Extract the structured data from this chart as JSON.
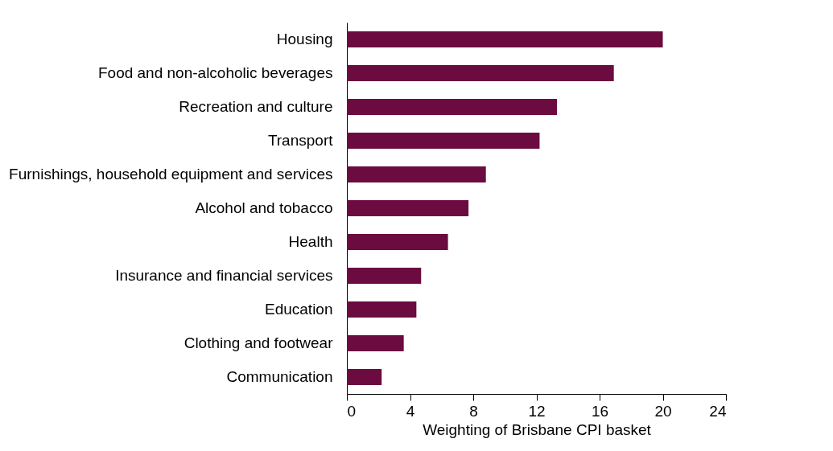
{
  "chart_data": {
    "type": "bar",
    "orientation": "horizontal",
    "xlabel": "Weighting of Brisbane CPI basket",
    "categories": [
      "Housing",
      "Food and non-alcoholic beverages",
      "Recreation and culture",
      "Transport",
      "Furnishings, household equipment and services",
      "Alcohol and tobacco",
      "Health",
      "Insurance and financial services",
      "Education",
      "Clothing and footwear",
      "Communication"
    ],
    "values": [
      20.0,
      16.9,
      13.3,
      12.2,
      8.8,
      7.7,
      6.4,
      4.7,
      4.4,
      3.6,
      2.2
    ],
    "color": "#6b0b3f",
    "xlim": [
      0,
      24
    ],
    "xticks": [
      0,
      4,
      8,
      12,
      16,
      20,
      24
    ],
    "grid": false
  }
}
